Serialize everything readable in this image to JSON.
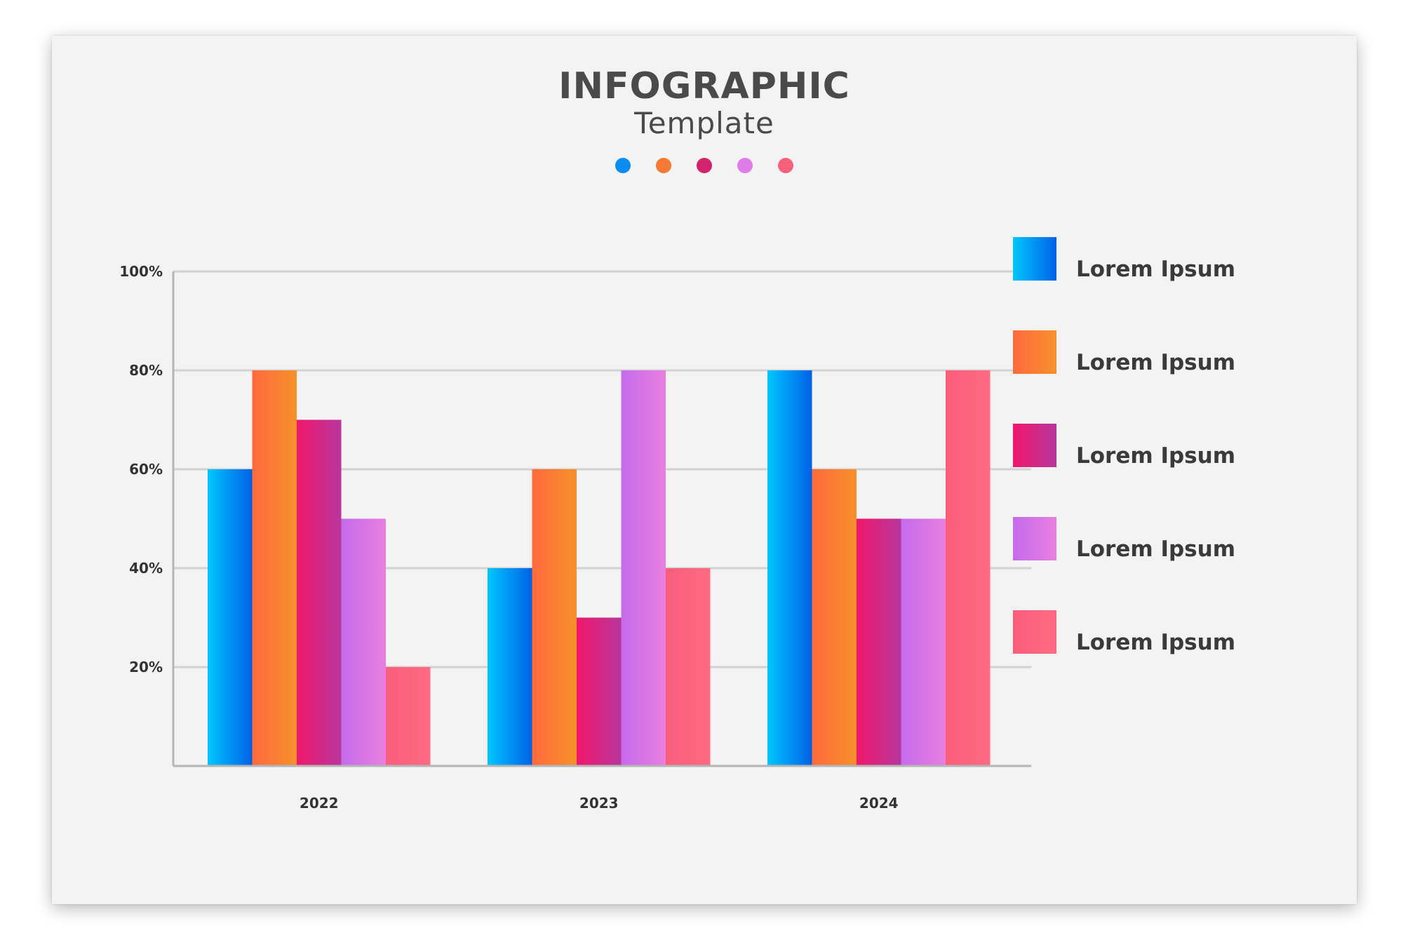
{
  "header": {
    "title": "INFOGRAPHIC",
    "subtitle": "Template"
  },
  "colors": {
    "background": "#f3f3f3",
    "series": [
      {
        "from": "#00c6ff",
        "to": "#0061e6"
      },
      {
        "from": "#ff6a3d",
        "to": "#f7902c"
      },
      {
        "from": "#f0176b",
        "to": "#b8369c"
      },
      {
        "from": "#c56bec",
        "to": "#e97fe0"
      },
      {
        "from": "#f95d7a",
        "to": "#ff6b82"
      }
    ],
    "dots": [
      "#0a8cf0",
      "#f57a33",
      "#d2236f",
      "#df7ce8",
      "#f9607a"
    ]
  },
  "chart_data": {
    "type": "bar",
    "title": "INFOGRAPHIC",
    "subtitle": "Template",
    "categories": [
      "2022",
      "2023",
      "2024"
    ],
    "series": [
      {
        "name": "Lorem Ipsum",
        "values": [
          60,
          40,
          80
        ]
      },
      {
        "name": "Lorem Ipsum",
        "values": [
          80,
          60,
          60
        ]
      },
      {
        "name": "Lorem Ipsum",
        "values": [
          70,
          30,
          50
        ]
      },
      {
        "name": "Lorem Ipsum",
        "values": [
          50,
          80,
          50
        ]
      },
      {
        "name": "Lorem Ipsum",
        "values": [
          20,
          40,
          80
        ]
      }
    ],
    "ylim": [
      0,
      100
    ],
    "yticks": [
      20,
      40,
      60,
      80,
      100
    ],
    "ytick_labels": [
      "20%",
      "40%",
      "60%",
      "80%",
      "100%"
    ],
    "xlabel": "",
    "ylabel": "",
    "grid": true,
    "legend": "right"
  }
}
